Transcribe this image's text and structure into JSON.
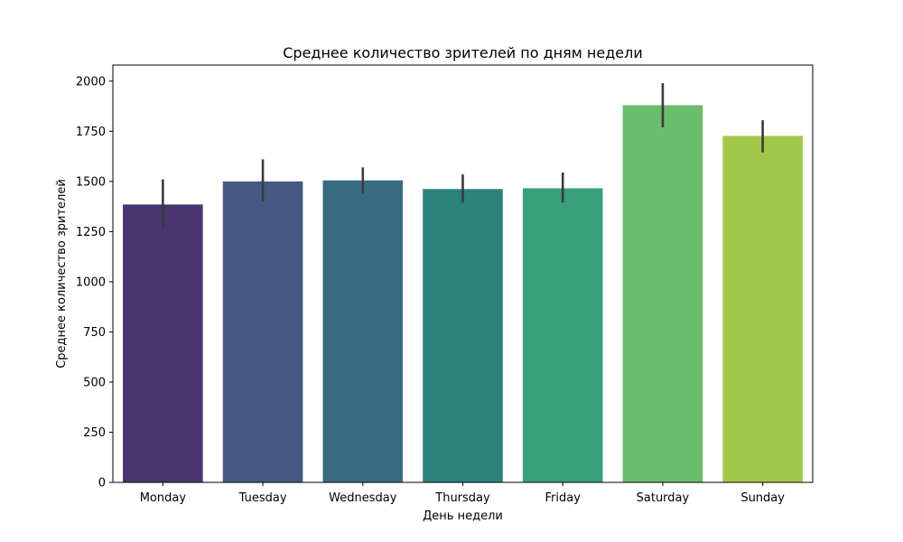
{
  "chart_data": {
    "type": "bar",
    "title": "Среднее количество зрителей по дням недели",
    "xlabel": "День недели",
    "ylabel": "Среднее количество зрителей",
    "ylim": [
      0,
      2080
    ],
    "yticks": [
      0,
      250,
      500,
      750,
      1000,
      1250,
      1500,
      1750,
      2000
    ],
    "grid": false,
    "categories": [
      "Monday",
      "Tuesday",
      "Wednesday",
      "Thursday",
      "Friday",
      "Saturday",
      "Sunday"
    ],
    "values": [
      1385,
      1500,
      1505,
      1462,
      1466,
      1880,
      1727
    ],
    "error_low": [
      1270,
      1400,
      1440,
      1395,
      1395,
      1770,
      1645
    ],
    "error_high": [
      1510,
      1610,
      1570,
      1535,
      1545,
      1990,
      1805
    ],
    "colors": [
      "#4a3570",
      "#465985",
      "#386c81",
      "#2c827d",
      "#3aa07c",
      "#6abd6c",
      "#a1c848"
    ],
    "error_color": "#3b3b3b"
  }
}
